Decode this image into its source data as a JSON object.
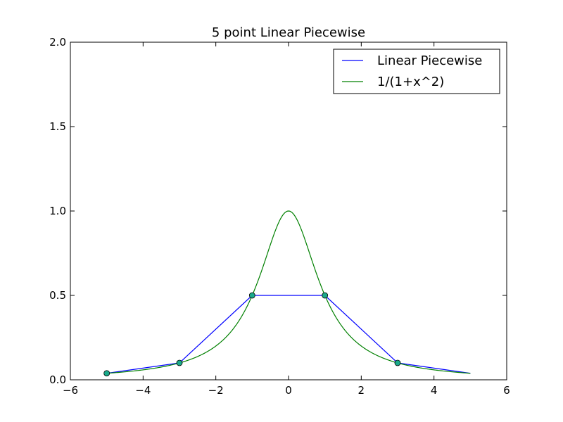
{
  "chart_data": {
    "type": "line",
    "title": "5 point Linear Piecewise",
    "xlabel": "",
    "ylabel": "",
    "xlim": [
      -6,
      6
    ],
    "ylim": [
      0.0,
      2.0
    ],
    "xticks": [
      -6,
      -4,
      -2,
      0,
      2,
      4,
      6
    ],
    "xtick_labels": [
      "−6",
      "−4",
      "−2",
      "0",
      "2",
      "4",
      "6"
    ],
    "yticks": [
      0.0,
      0.5,
      1.0,
      1.5,
      2.0
    ],
    "ytick_labels": [
      "0.0",
      "0.5",
      "1.0",
      "1.5",
      "2.0"
    ],
    "grid": false,
    "legend_position": "top-right",
    "series": [
      {
        "name": "Linear Piecewise",
        "color": "#0000ff",
        "x": [
          -5,
          -3,
          -1,
          1,
          3,
          5
        ],
        "y": [
          0.0385,
          0.1,
          0.5,
          0.5,
          0.1,
          0.0385
        ]
      },
      {
        "name": "1/(1+x^2)",
        "color": "#008000",
        "function": "1/(1+x^2)",
        "x_range": [
          -5,
          5
        ]
      }
    ],
    "markers": {
      "color": "#1aaa8a",
      "x": [
        -5,
        -3,
        -1,
        1,
        3
      ],
      "y": [
        0.0385,
        0.1,
        0.5,
        0.5,
        0.1
      ]
    }
  }
}
